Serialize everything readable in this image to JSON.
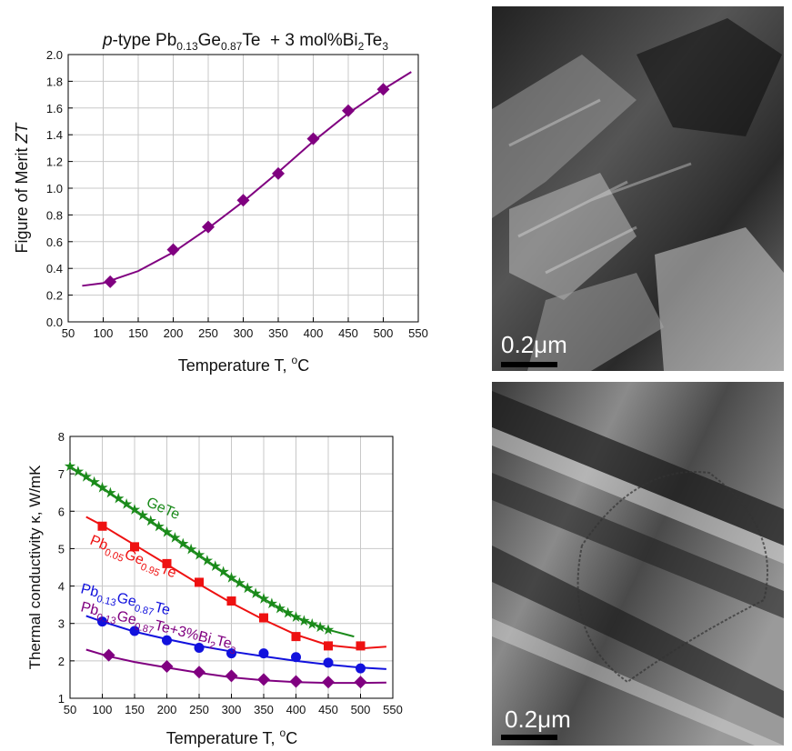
{
  "chart_data": [
    {
      "type": "scatter-fit",
      "title_parts": [
        "p",
        "-type Pb",
        "0.13",
        "Ge",
        "0.87",
        "Te  + 3 mol%Bi",
        "2",
        "Te",
        "3"
      ],
      "xlabel_parts": [
        "Temperature T, ",
        "o",
        "C"
      ],
      "ylabel_parts": [
        "Figure of Merit",
        "ZT"
      ],
      "xlim": [
        50,
        550
      ],
      "xticks": [
        50,
        100,
        150,
        200,
        250,
        300,
        350,
        400,
        450,
        500,
        550
      ],
      "ylim": [
        0,
        2
      ],
      "yticks": [
        {
          "value": 0,
          "label": "0.0"
        },
        0.2,
        0.4,
        0.6,
        0.8,
        {
          "value": 1,
          "label": "1.0"
        },
        1.2,
        1.4,
        1.6,
        1.8,
        {
          "value": 2,
          "label": "2.0"
        }
      ],
      "grid": true,
      "series": [
        {
          "color": "#800080",
          "marker": "diamond",
          "x": [
            110,
            200,
            250,
            300,
            350,
            400,
            450,
            500
          ],
          "values": [
            0.3,
            0.54,
            0.71,
            0.91,
            1.11,
            1.37,
            1.58,
            1.74
          ],
          "fit_x": [
            70,
            100,
            150,
            200,
            250,
            300,
            350,
            400,
            450,
            500,
            540
          ],
          "fit_values": [
            0.27,
            0.29,
            0.38,
            0.52,
            0.7,
            0.9,
            1.12,
            1.35,
            1.56,
            1.74,
            1.87
          ]
        }
      ]
    },
    {
      "type": "scatter-fit",
      "xlabel_parts": [
        "Temperature T, ",
        "o",
        "C"
      ],
      "ylabel_parts": [
        "Thermal conductivity κ, W/mK"
      ],
      "xlim": [
        50,
        550
      ],
      "xticks": [
        50,
        100,
        150,
        200,
        250,
        300,
        350,
        400,
        450,
        500,
        550
      ],
      "ylim": [
        1,
        8
      ],
      "yticks": [
        1,
        2,
        3,
        4,
        5,
        6,
        7,
        8
      ],
      "grid": true,
      "series": [
        {
          "label_parts": [
            "GeTe"
          ],
          "color": "#1a8a1a",
          "marker": "star",
          "x": [
            50,
            62.5,
            75,
            87.5,
            100,
            112.5,
            125,
            137.5,
            150,
            162.5,
            175,
            187.5,
            200,
            212.5,
            225,
            237.5,
            250,
            262.5,
            275,
            287.5,
            300,
            312.5,
            325,
            337.5,
            350,
            362.5,
            375,
            387.5,
            400,
            412.5,
            425,
            437.5,
            450
          ],
          "values": [
            7.2,
            7.06,
            6.92,
            6.78,
            6.63,
            6.49,
            6.34,
            6.19,
            6.04,
            5.89,
            5.74,
            5.59,
            5.44,
            5.29,
            5.13,
            4.98,
            4.83,
            4.68,
            4.53,
            4.38,
            4.22,
            4.08,
            3.94,
            3.8,
            3.66,
            3.53,
            3.4,
            3.28,
            3.17,
            3.07,
            2.98,
            2.9,
            2.83
          ],
          "fit_x": [
            50,
            100,
            150,
            200,
            250,
            300,
            350,
            400,
            450,
            490
          ],
          "fit_values": [
            7.2,
            6.63,
            6.04,
            5.44,
            4.83,
            4.22,
            3.66,
            3.17,
            2.83,
            2.65
          ]
        },
        {
          "label_parts": [
            "Pb",
            "0.05",
            "Ge",
            "0.95",
            "Te"
          ],
          "color": "#ee1111",
          "marker": "square",
          "x": [
            100,
            150,
            200,
            250,
            300,
            350,
            400,
            450,
            500
          ],
          "values": [
            5.6,
            5.05,
            4.6,
            4.1,
            3.6,
            3.15,
            2.65,
            2.4,
            2.4
          ],
          "fit_x": [
            75,
            100,
            150,
            200,
            250,
            300,
            350,
            400,
            450,
            500,
            540
          ],
          "fit_values": [
            5.85,
            5.62,
            5.1,
            4.58,
            4.05,
            3.55,
            3.1,
            2.7,
            2.42,
            2.33,
            2.38
          ]
        },
        {
          "label_parts": [
            "Pb",
            "0.13",
            "Ge",
            "0.87",
            "Te"
          ],
          "color": "#1111dd",
          "marker": "circle",
          "x": [
            100,
            150,
            200,
            250,
            300,
            350,
            400,
            450,
            500
          ],
          "values": [
            3.05,
            2.8,
            2.55,
            2.35,
            2.2,
            2.2,
            2.1,
            1.95,
            1.8
          ],
          "fit_x": [
            75,
            100,
            150,
            200,
            250,
            300,
            350,
            400,
            450,
            500,
            540
          ],
          "fit_values": [
            3.2,
            3.05,
            2.78,
            2.58,
            2.4,
            2.25,
            2.12,
            2.0,
            1.9,
            1.82,
            1.78
          ]
        },
        {
          "label_parts": [
            "Pb",
            "0.13",
            "Ge",
            "0.87",
            "Te+3%Bi",
            "2",
            "Te",
            "3"
          ],
          "color": "#800080",
          "marker": "diamond",
          "x": [
            110,
            200,
            250,
            300,
            350,
            400,
            450,
            500
          ],
          "values": [
            2.15,
            1.85,
            1.7,
            1.6,
            1.5,
            1.45,
            1.43,
            1.43
          ],
          "fit_x": [
            75,
            110,
            150,
            200,
            250,
            300,
            350,
            400,
            450,
            500,
            540
          ],
          "fit_values": [
            2.3,
            2.12,
            1.97,
            1.82,
            1.68,
            1.56,
            1.48,
            1.43,
            1.41,
            1.41,
            1.42
          ]
        }
      ]
    }
  ],
  "images": [
    {
      "scale_label": "0.2μm"
    },
    {
      "scale_label": "0.2μm"
    }
  ]
}
